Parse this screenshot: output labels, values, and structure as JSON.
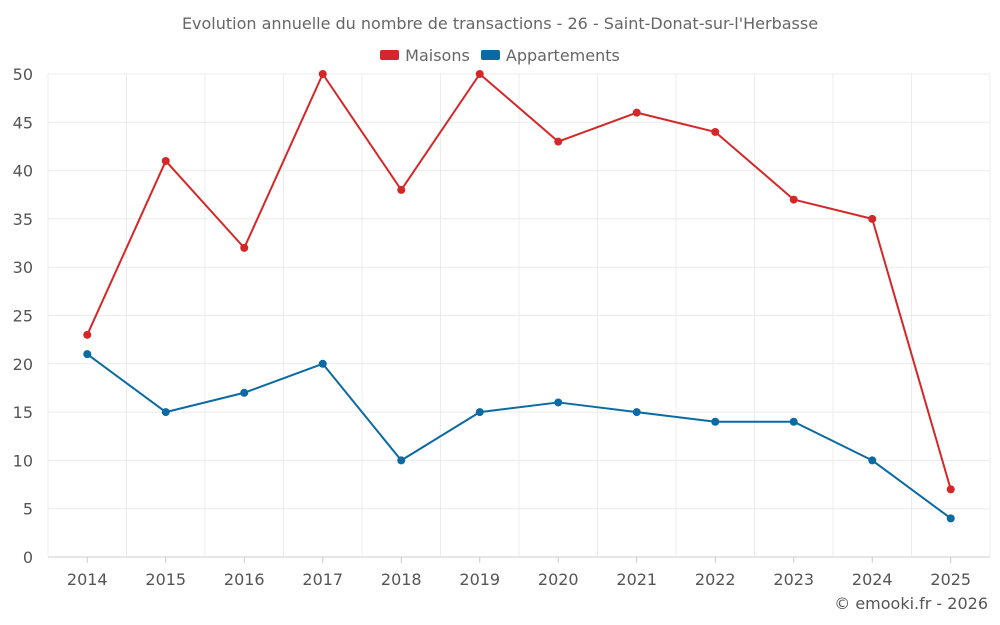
{
  "chart_data": {
    "type": "line",
    "title": "Evolution annuelle du nombre de transactions - 26 - Saint-Donat-sur-l'Herbasse",
    "categories": [
      "2014",
      "2015",
      "2016",
      "2017",
      "2018",
      "2019",
      "2020",
      "2021",
      "2022",
      "2023",
      "2024",
      "2025"
    ],
    "series": [
      {
        "name": "Maisons",
        "color": "#d62728",
        "values": [
          23,
          41,
          32,
          50,
          38,
          50,
          43,
          46,
          44,
          37,
          35,
          7
        ]
      },
      {
        "name": "Appartements",
        "color": "#0b6aa2",
        "values": [
          21,
          15,
          17,
          20,
          10,
          15,
          16,
          15,
          14,
          14,
          10,
          4
        ]
      }
    ],
    "ylim": [
      0,
      50
    ],
    "yticks": [
      0,
      5,
      10,
      15,
      20,
      25,
      30,
      35,
      40,
      45,
      50
    ],
    "xlabel": "",
    "ylabel": "",
    "grid": true,
    "legend_position": "top-center"
  },
  "credit": "© emooki.fr - 2026"
}
